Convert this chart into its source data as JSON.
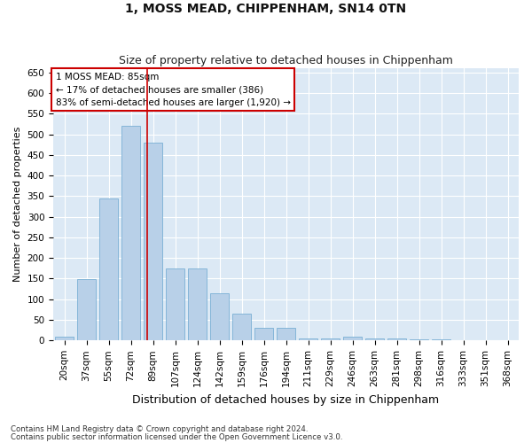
{
  "title": "1, MOSS MEAD, CHIPPENHAM, SN14 0TN",
  "subtitle": "Size of property relative to detached houses in Chippenham",
  "xlabel": "Distribution of detached houses by size in Chippenham",
  "ylabel": "Number of detached properties",
  "categories": [
    "20sqm",
    "37sqm",
    "55sqm",
    "72sqm",
    "89sqm",
    "107sqm",
    "124sqm",
    "142sqm",
    "159sqm",
    "176sqm",
    "194sqm",
    "211sqm",
    "229sqm",
    "246sqm",
    "263sqm",
    "281sqm",
    "298sqm",
    "316sqm",
    "333sqm",
    "351sqm",
    "368sqm"
  ],
  "values": [
    10,
    148,
    345,
    520,
    480,
    175,
    175,
    115,
    65,
    30,
    30,
    5,
    5,
    10,
    5,
    5,
    2,
    2,
    0,
    0,
    0
  ],
  "bar_color": "#b8d0e8",
  "bar_edge_color": "#7aafd4",
  "background_color": "#dce9f5",
  "grid_color": "#ffffff",
  "vline_color": "#cc0000",
  "vline_pos": 3.72,
  "annotation_text": "1 MOSS MEAD: 85sqm\n← 17% of detached houses are smaller (386)\n83% of semi-detached houses are larger (1,920) →",
  "annotation_box_facecolor": "#ffffff",
  "annotation_box_edgecolor": "#cc0000",
  "footnote1": "Contains HM Land Registry data © Crown copyright and database right 2024.",
  "footnote2": "Contains public sector information licensed under the Open Government Licence v3.0.",
  "ylim": [
    0,
    660
  ],
  "yticks": [
    0,
    50,
    100,
    150,
    200,
    250,
    300,
    350,
    400,
    450,
    500,
    550,
    600,
    650
  ],
  "title_fontsize": 10,
  "subtitle_fontsize": 9,
  "xlabel_fontsize": 9,
  "ylabel_fontsize": 8,
  "tick_fontsize": 7.5,
  "annot_fontsize": 7.5
}
